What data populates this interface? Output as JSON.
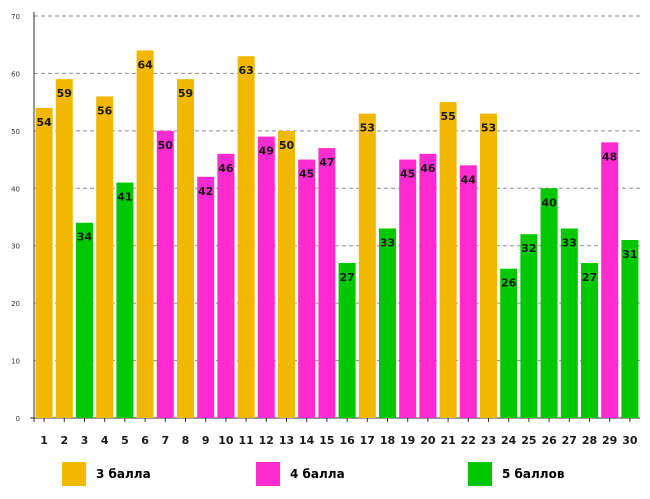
{
  "chart_data": {
    "type": "bar",
    "title": "",
    "xlabel": "",
    "ylabel": "",
    "ylim": [
      0,
      70
    ],
    "yticks": [
      0,
      10,
      20,
      30,
      40,
      50,
      60,
      70
    ],
    "grid": "horizontal-dashed",
    "categories": [
      "1",
      "2",
      "3",
      "4",
      "5",
      "6",
      "7",
      "8",
      "9",
      "10",
      "11",
      "12",
      "13",
      "14",
      "15",
      "16",
      "17",
      "18",
      "19",
      "20",
      "21",
      "22",
      "23",
      "24",
      "25",
      "26",
      "27",
      "28",
      "29",
      "30"
    ],
    "values": [
      54,
      59,
      34,
      56,
      41,
      64,
      50,
      59,
      42,
      46,
      63,
      49,
      50,
      45,
      47,
      27,
      53,
      33,
      45,
      46,
      55,
      44,
      53,
      26,
      32,
      40,
      33,
      27,
      48,
      31
    ],
    "groups": [
      "3",
      "3",
      "5",
      "3",
      "5",
      "3",
      "4",
      "3",
      "4",
      "4",
      "3",
      "4",
      "3",
      "4",
      "4",
      "5",
      "3",
      "5",
      "4",
      "4",
      "3",
      "4",
      "3",
      "5",
      "5",
      "5",
      "5",
      "5",
      "4",
      "5"
    ],
    "legend": [
      {
        "key": "3",
        "label": "3 балла",
        "color": "#F2B800"
      },
      {
        "key": "4",
        "label": "4 балла",
        "color": "#FF2BD1"
      },
      {
        "key": "5",
        "label": "5 баллов",
        "color": "#00C800"
      }
    ],
    "legend_position": "bottom"
  }
}
